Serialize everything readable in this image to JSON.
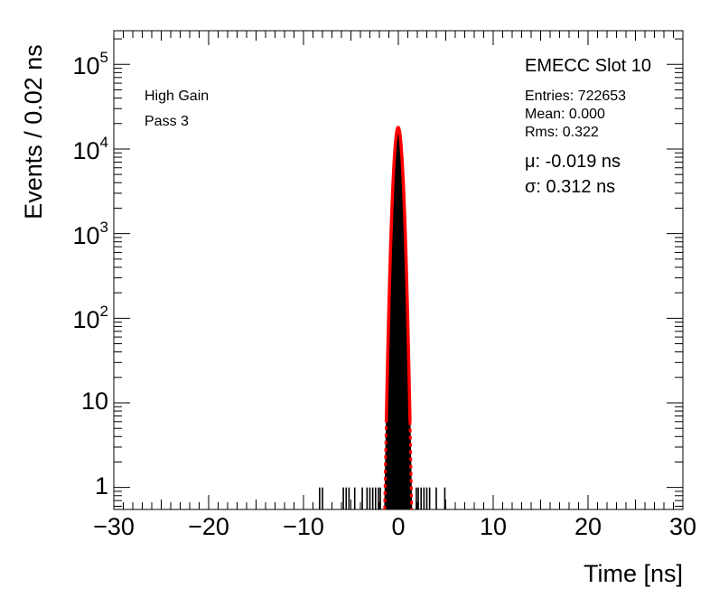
{
  "chart_data": {
    "type": "histogram",
    "xlabel": "Time [ns]",
    "ylabel": "Events / 0.02 ns",
    "xlim": [
      -30,
      30
    ],
    "ylim": [
      0.55,
      250000
    ],
    "yscale": "log",
    "x_ticks": [
      -30,
      -20,
      -10,
      0,
      10,
      20,
      30
    ],
    "x_tick_labels": [
      "−30",
      "−20",
      "−10",
      "0",
      "10",
      "20",
      "30"
    ],
    "y_ticks": [
      {
        "value": 1,
        "base": "1",
        "exp": ""
      },
      {
        "value": 10,
        "base": "10",
        "exp": ""
      },
      {
        "value": 100,
        "base": "10",
        "exp": "2"
      },
      {
        "value": 1000,
        "base": "10",
        "exp": "3"
      },
      {
        "value": 10000,
        "base": "10",
        "exp": "4"
      },
      {
        "value": 100000,
        "base": "10",
        "exp": "5"
      }
    ],
    "annotations": {
      "gain": "High Gain",
      "pass": "Pass 3",
      "slot": "EMECC Slot 10",
      "entries": "Entries: 722653",
      "mean": "Mean: 0.000",
      "rms": "Rms: 0.322",
      "mu": "μ: -0.019 ns",
      "sigma": "σ: 0.312 ns"
    },
    "fit": {
      "type": "gaussian",
      "mean": -0.019,
      "sigma": 0.312,
      "amplitude": 18000,
      "color": "#ff0000"
    },
    "tail_bins_x": [
      -8.3,
      -8.0,
      -5.8,
      -5.5,
      -5.2,
      -4.6,
      -3.8,
      -3.3,
      -3.0,
      -2.7,
      -2.4,
      -2.1,
      -1.9,
      1.9,
      2.1,
      2.4,
      2.7,
      3.0,
      3.3,
      4.0,
      4.9
    ],
    "tail_bins_y": [
      1,
      1,
      1,
      1,
      1,
      1,
      1,
      1,
      1,
      1,
      1,
      1,
      1,
      1,
      1,
      1,
      1,
      1,
      1,
      1,
      1
    ],
    "hist_color": "#000000",
    "grid": false
  }
}
